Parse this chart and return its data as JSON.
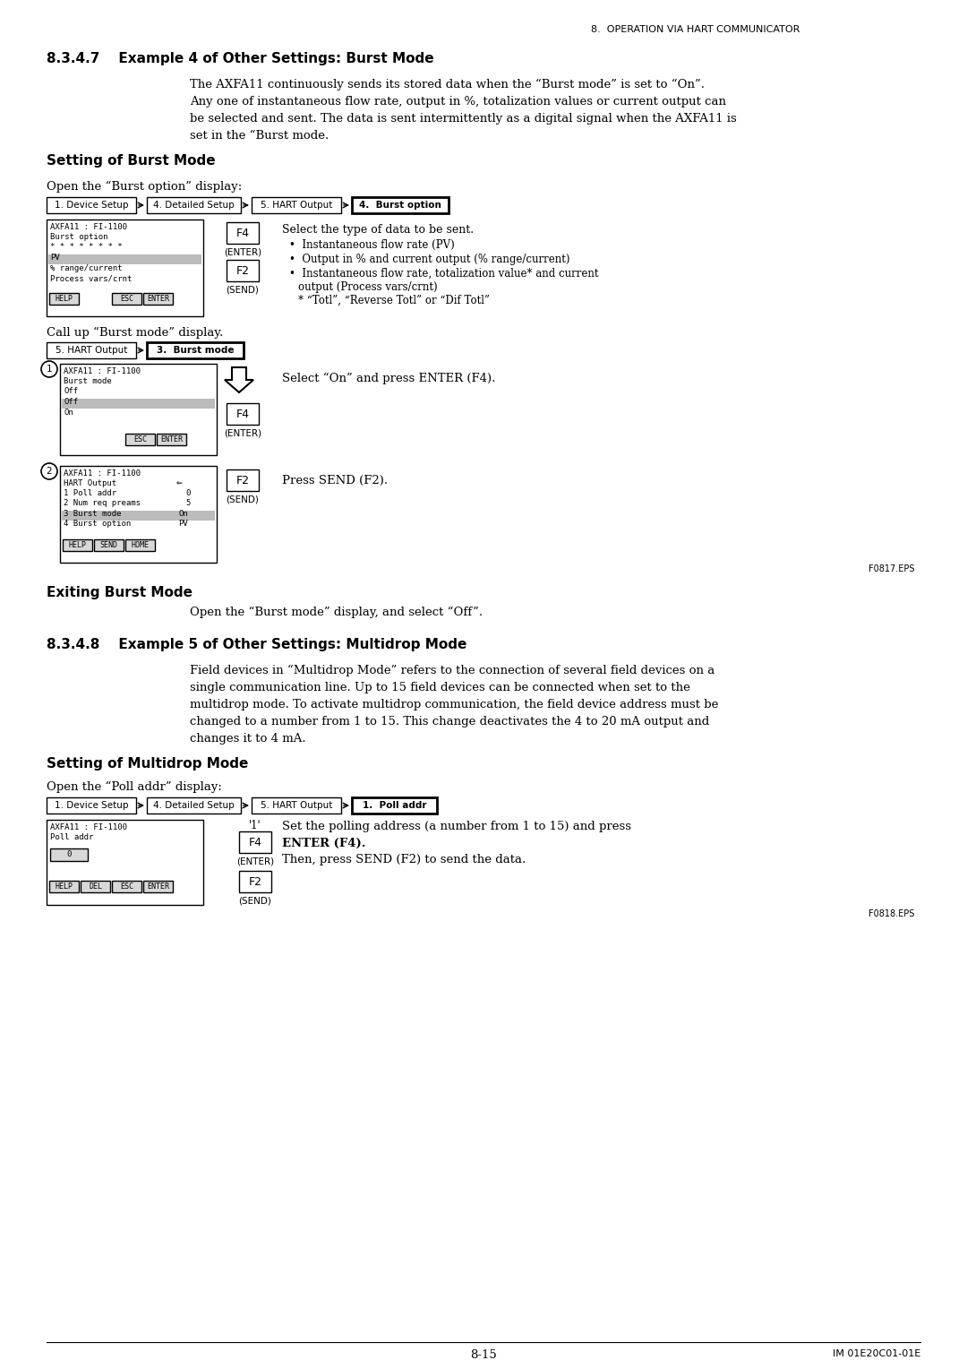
{
  "page_header": "8.  OPERATION VIA HART COMMUNICATOR",
  "section_347_title": "8.3.4.7    Example 4 of Other Settings: Burst Mode",
  "section_347_body": [
    "The AXFA11 continuously sends its stored data when the “Burst mode” is set to “On”.",
    "Any one of instantaneous flow rate, output in %, totalization values or current output can",
    "be selected and sent. The data is sent intermittently as a digital signal when the AXFA11 is",
    "set in the “Burst mode."
  ],
  "setting_burst_title": "Setting of Burst Mode",
  "nav1_items": [
    "1. Device Setup",
    "4. Detailed Setup",
    "5. HART Output",
    "4.  Burst option"
  ],
  "burst_option_bullets": [
    "Instantaneous flow rate (PV)",
    "Output in % and current output (% range/current)",
    "Instantaneous flow rate, totalization value* and current",
    "output (Process vars/crnt)",
    "* “Totl”, “Reverse Totl” or “Dif Totl”"
  ],
  "nav2_items": [
    "5. HART Output",
    "3.  Burst mode"
  ],
  "figure1_label": "F0817.EPS",
  "exiting_burst_title": "Exiting Burst Mode",
  "exiting_burst_body": "Open the “Burst mode” display, and select “Off”.",
  "section_348_title": "8.3.4.8    Example 5 of Other Settings: Multidrop Mode",
  "section_348_body": [
    "Field devices in “Multidrop Mode” refers to the connection of several field devices on a",
    "single communication line. Up to 15 field devices can be connected when set to the",
    "multidrop mode. To activate multidrop communication, the field device address must be",
    "changed to a number from 1 to 15. This change deactivates the 4 to 20 mA output and",
    "changes it to 4 mA."
  ],
  "setting_multidrop_title": "Setting of Multidrop Mode",
  "nav3_items": [
    "1. Device Setup",
    "4. Detailed Setup",
    "5. HART Output",
    "1.  Poll addr"
  ],
  "poll_addr_desc1": "Set the polling address (a number from 1 to 15) and press",
  "poll_addr_desc2": "ENTER (F4).",
  "poll_addr_desc3": "Then, press SEND (F2) to send the data.",
  "figure2_label": "F0818.EPS",
  "page_footer_left": "8-15",
  "page_footer_right": "IM 01E20C01-01E"
}
